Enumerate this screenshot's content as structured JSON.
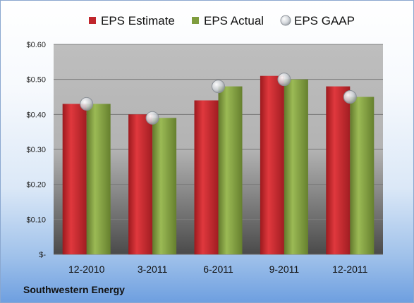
{
  "company": "Southwestern Energy",
  "chart_data": {
    "type": "bar",
    "categories": [
      "12-2010",
      "3-2011",
      "6-2011",
      "9-2011",
      "12-2011"
    ],
    "series": [
      {
        "name": "EPS Estimate",
        "values": [
          0.43,
          0.4,
          0.44,
          0.51,
          0.48
        ],
        "color": "#c0262c"
      },
      {
        "name": "EPS Actual",
        "values": [
          0.43,
          0.39,
          0.48,
          0.5,
          0.45
        ],
        "color": "#7f9d3e"
      },
      {
        "name": "EPS GAAP",
        "values": [
          0.43,
          0.39,
          0.48,
          0.5,
          0.45
        ],
        "color": "#b9bdc2",
        "marker": "circle"
      }
    ],
    "yticks": [
      "$-",
      "$0.10",
      "$0.20",
      "$0.30",
      "$0.40",
      "$0.50",
      "$0.60"
    ],
    "ylim": [
      0,
      0.6
    ],
    "grid": true,
    "legend": "top",
    "title": "",
    "xlabel": "",
    "ylabel": ""
  }
}
